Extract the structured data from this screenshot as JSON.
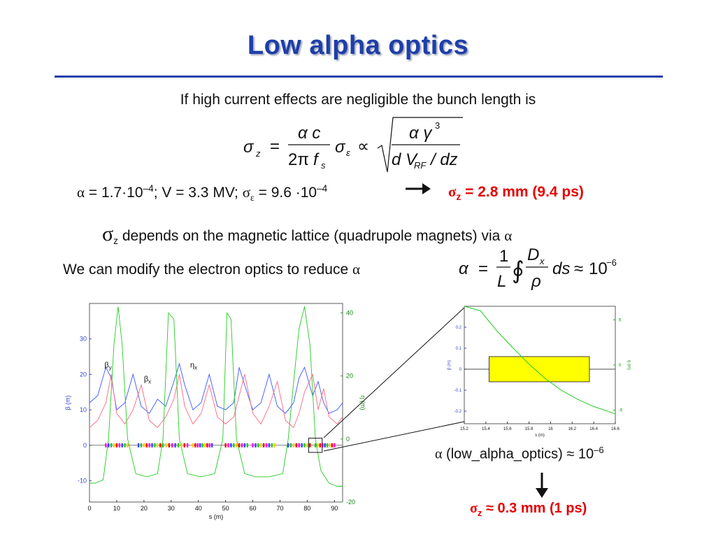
{
  "title": "Low alpha optics",
  "intro": "If high current effects are negligible the bunch length is",
  "params": {
    "alpha_sym": "α",
    "text1": " = 1.7·10",
    "exp1": "–4",
    "text2": "; V = 3.3 MV; ",
    "sigma_sym": "σ",
    "eps_sub": "ε",
    "text3": " = 9.6 ·10",
    "exp2": "–4"
  },
  "result1": {
    "sigma": "σ",
    "sub": "z",
    "text": " = 2.8 mm (9.4 ps)"
  },
  "depends": {
    "sigma": "σ",
    "sub": "z",
    "text": " depends on the magnetic lattice (quadrupole magnets) via ",
    "alpha": "α"
  },
  "modify": {
    "text": "We can modify the electron optics to reduce ",
    "alpha": "α"
  },
  "low_alpha": {
    "alpha": "α",
    "text": " (low_alpha_optics) ≈ 10",
    "exp": "–6"
  },
  "result2": {
    "sigma": "σ",
    "sub": "z",
    "text": " ≈ 0.3 mm (1 ps)"
  },
  "formula1": {
    "sigma": "σ",
    "z": "z",
    "eq": "=",
    "num": "α c",
    "den_2pi": "2π",
    "fs": "f",
    "s": "s",
    "eps": "ε",
    "prop": "∝",
    "rad_num": "α γ",
    "three": "3",
    "rad_den": "d V",
    "rf": "RF",
    "dz": "/ dz"
  },
  "formula2": {
    "alpha": "α",
    "eq": "=",
    "one": "1",
    "L": "L",
    "oint": "∮",
    "D": "D",
    "x": "x",
    "rho": "ρ",
    "ds": "ds",
    "approx": "≈",
    "ten": "10",
    "exp": "−6"
  },
  "colors": {
    "title": "#1f3ea8",
    "red": "#e60000",
    "beta_y": "#3b55ff",
    "beta_x": "#ff6680",
    "eta": "#22cc22",
    "box_fill": "#ffff00"
  },
  "chart_data": [
    {
      "type": "line",
      "title": "",
      "xlabel": "s (m)",
      "ylabel": "β (m)",
      "y2label": "η (m)",
      "xlim": [
        0,
        93
      ],
      "ylim": [
        -16,
        40
      ],
      "y2lim": [
        -20,
        43
      ],
      "xticks": [
        0,
        10,
        20,
        30,
        40,
        50,
        60,
        70,
        80,
        90
      ],
      "yticks": [
        -10,
        0,
        10,
        20,
        30
      ],
      "y2ticks": [
        -20,
        0,
        20,
        40
      ],
      "annotations": [
        {
          "label": "β",
          "sub": "y",
          "x": 5.5,
          "y": 22
        },
        {
          "label": "β",
          "sub": "x",
          "x": 20,
          "y": 18
        },
        {
          "label": "η",
          "sub": "x",
          "x": 37,
          "y": 22
        }
      ],
      "series": [
        {
          "id": "beta_y",
          "axis": "left",
          "color": "#3b55ff",
          "x": [
            0,
            3,
            6,
            8,
            10,
            13,
            16,
            19,
            22,
            25,
            28,
            31,
            33,
            35,
            38,
            41,
            44,
            47,
            50,
            53,
            55,
            57,
            60,
            63,
            66,
            69,
            72,
            75,
            77,
            79,
            82,
            84,
            86,
            88,
            91,
            93
          ],
          "values": [
            12,
            14,
            22,
            19,
            10,
            12,
            20,
            11,
            9,
            13,
            11,
            18,
            23,
            17,
            10,
            12,
            20,
            11,
            10,
            12,
            22,
            17,
            10,
            12,
            20,
            11,
            9,
            12,
            19,
            22,
            14,
            18,
            12,
            9,
            10,
            12
          ]
        },
        {
          "id": "beta_x",
          "axis": "left",
          "color": "#ff6680",
          "x": [
            0,
            3,
            6,
            8,
            10,
            13,
            16,
            19,
            22,
            25,
            28,
            31,
            33,
            35,
            38,
            41,
            44,
            47,
            50,
            53,
            55,
            57,
            60,
            63,
            66,
            69,
            72,
            75,
            77,
            79,
            82,
            84,
            86,
            88,
            91,
            93
          ],
          "values": [
            5,
            7,
            12,
            20,
            9,
            6,
            10,
            17,
            7,
            5,
            8,
            13,
            20,
            11,
            6,
            9,
            17,
            8,
            6,
            8,
            14,
            20,
            9,
            6,
            11,
            18,
            7,
            5,
            9,
            15,
            20,
            10,
            16,
            8,
            6,
            8
          ]
        },
        {
          "id": "eta_x",
          "axis": "right",
          "color": "#22cc22",
          "x": [
            0,
            2,
            5,
            7,
            9,
            10.5,
            12,
            14,
            17,
            21,
            25,
            27,
            29,
            31,
            33,
            36,
            41,
            46,
            49,
            50.5,
            52,
            54,
            57,
            61,
            66,
            71,
            73,
            75,
            77,
            79,
            81,
            83,
            85,
            88,
            91,
            93
          ],
          "values": [
            -14,
            -14,
            -13,
            0,
            30,
            42,
            30,
            0,
            -11,
            -12,
            -11,
            0,
            40,
            38,
            0,
            -11,
            -12,
            -11,
            0,
            40,
            38,
            0,
            -11,
            -12,
            -12,
            -11,
            0,
            18,
            35,
            42,
            30,
            0,
            -10,
            -14,
            -15,
            -15
          ]
        }
      ],
      "elements_y": 0,
      "zoom_box": {
        "x": [
          80.5,
          85.5
        ],
        "y": [
          -2,
          2
        ]
      }
    },
    {
      "type": "line",
      "title": "",
      "xlabel": "s (m)",
      "ylabel": "β (m)",
      "y2label": "η (m)",
      "xlim": [
        15.2,
        16.6
      ],
      "ylim": [
        -0.26,
        0.3
      ],
      "y2lim": [
        -6.5,
        6.5
      ],
      "xticks": [
        15.2,
        15.4,
        15.6,
        15.8,
        16,
        16.2,
        16.4,
        16.6
      ],
      "yticks": [
        -0.2,
        -0.1,
        0,
        0.1,
        0.2
      ],
      "y2ticks": [
        -5,
        0,
        5
      ],
      "element_box": {
        "x": [
          15.43,
          16.36
        ],
        "y": [
          -0.06,
          0.06
        ]
      },
      "series": [
        {
          "id": "eta_x",
          "axis": "right",
          "color": "#22cc22",
          "x": [
            15.2,
            15.35,
            15.5,
            15.65,
            15.8,
            15.95,
            16.1,
            16.25,
            16.4,
            16.6
          ],
          "values": [
            8.2,
            6.0,
            3.8,
            1.9,
            0.1,
            -1.5,
            -2.8,
            -3.8,
            -4.6,
            -5.4
          ]
        }
      ]
    }
  ]
}
